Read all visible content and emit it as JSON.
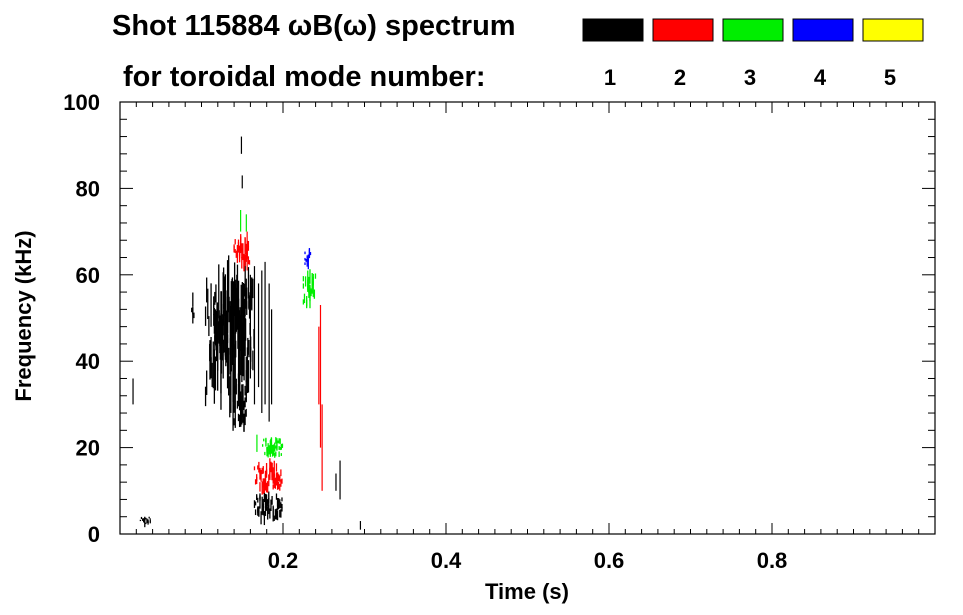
{
  "chart_data": {
    "type": "scatter",
    "title": "Shot 115884 ωB(ω) spectrum",
    "subtitle": "for toroidal mode number:",
    "xlabel": "Time (s)",
    "ylabel": "Frequency (kHz)",
    "xlim": [
      0.0,
      1.0
    ],
    "ylim": [
      0,
      100
    ],
    "x_ticks": [
      0.2,
      0.4,
      0.6,
      0.8
    ],
    "x_tick_labels": [
      "0.2",
      "0.4",
      "0.6",
      "0.8"
    ],
    "y_ticks": [
      0,
      20,
      40,
      60,
      80,
      100
    ],
    "y_tick_labels": [
      "0",
      "20",
      "40",
      "60",
      "80",
      "100"
    ],
    "legend_placement": "top-right",
    "legend": [
      {
        "mode": "1",
        "color": "#000000"
      },
      {
        "mode": "2",
        "color": "#ff0000"
      },
      {
        "mode": "3",
        "color": "#00ee00"
      },
      {
        "mode": "4",
        "color": "#0000ff"
      },
      {
        "mode": "5",
        "color": "#ffff00"
      }
    ],
    "series": [
      {
        "name": "n=1",
        "color": "#000000",
        "blobs": [
          {
            "t0": 0.105,
            "t1": 0.165,
            "f0": 30,
            "f1": 60
          },
          {
            "t0": 0.115,
            "t1": 0.16,
            "f0": 40,
            "f1": 58
          },
          {
            "t0": 0.088,
            "t1": 0.092,
            "f0": 48,
            "f1": 55
          },
          {
            "t0": 0.14,
            "t1": 0.155,
            "f0": 24,
            "f1": 35
          },
          {
            "t0": 0.165,
            "t1": 0.2,
            "f0": 3,
            "f1": 9
          },
          {
            "t0": 0.025,
            "t1": 0.038,
            "f0": 2,
            "f1": 4
          }
        ],
        "streaks": [
          {
            "t": 0.16,
            "f0": 36,
            "f1": 60
          },
          {
            "t": 0.165,
            "f0": 30,
            "f1": 62
          },
          {
            "t": 0.17,
            "f0": 34,
            "f1": 58
          },
          {
            "t": 0.174,
            "f0": 28,
            "f1": 61
          },
          {
            "t": 0.178,
            "f0": 30,
            "f1": 63
          },
          {
            "t": 0.183,
            "f0": 26,
            "f1": 58
          },
          {
            "t": 0.186,
            "f0": 30,
            "f1": 52
          },
          {
            "t": 0.15,
            "f0": 80,
            "f1": 83
          },
          {
            "t": 0.149,
            "f0": 88,
            "f1": 92
          },
          {
            "t": 0.27,
            "f0": 8,
            "f1": 17
          },
          {
            "t": 0.265,
            "f0": 10,
            "f1": 14
          },
          {
            "t": 0.295,
            "f0": 1,
            "f1": 3
          },
          {
            "t": 0.016,
            "f0": 30,
            "f1": 36
          },
          {
            "t": 0.11,
            "f0": 40,
            "f1": 44
          }
        ]
      },
      {
        "name": "n=2",
        "color": "#ff0000",
        "blobs": [
          {
            "t0": 0.14,
            "t1": 0.16,
            "f0": 62,
            "f1": 68
          },
          {
            "t0": 0.165,
            "t1": 0.2,
            "f0": 10,
            "f1": 16
          }
        ],
        "streaks": [
          {
            "t": 0.246,
            "f0": 20,
            "f1": 53
          },
          {
            "t": 0.248,
            "f0": 10,
            "f1": 30
          },
          {
            "t": 0.244,
            "f0": 30,
            "f1": 48
          },
          {
            "t": 0.156,
            "f0": 61,
            "f1": 70
          }
        ]
      },
      {
        "name": "n=3",
        "color": "#00ee00",
        "blobs": [
          {
            "t0": 0.225,
            "t1": 0.24,
            "f0": 53,
            "f1": 61
          },
          {
            "t0": 0.175,
            "t1": 0.2,
            "f0": 18,
            "f1": 22
          }
        ],
        "streaks": [
          {
            "t": 0.148,
            "f0": 70,
            "f1": 75
          },
          {
            "t": 0.155,
            "f0": 70,
            "f1": 74
          },
          {
            "t": 0.168,
            "f0": 19,
            "f1": 23
          },
          {
            "t": 0.185,
            "f0": 20,
            "f1": 22
          }
        ]
      },
      {
        "name": "n=4",
        "color": "#0000ff",
        "blobs": [
          {
            "t0": 0.227,
            "t1": 0.234,
            "f0": 62,
            "f1": 66
          }
        ],
        "streaks": []
      },
      {
        "name": "n=5",
        "color": "#ffff00",
        "blobs": [],
        "streaks": []
      }
    ]
  }
}
